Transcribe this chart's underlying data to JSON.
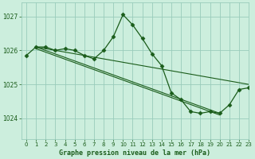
{
  "title": "Graphe pression niveau de la mer (hPa)",
  "background_color": "#cceedd",
  "grid_color": "#99ccbb",
  "line_color": "#1a5c1a",
  "xlim": [
    -0.5,
    23
  ],
  "ylim": [
    1023.4,
    1027.4
  ],
  "yticks": [
    1024,
    1025,
    1026,
    1027
  ],
  "xticks": [
    0,
    1,
    2,
    3,
    4,
    5,
    6,
    7,
    8,
    9,
    10,
    11,
    12,
    13,
    14,
    15,
    16,
    17,
    18,
    19,
    20,
    21,
    22,
    23
  ],
  "series_main": {
    "x": [
      0,
      1,
      2,
      3,
      4,
      5,
      6,
      7,
      8,
      9,
      10,
      11,
      12,
      13,
      14,
      15,
      16,
      17,
      18,
      19,
      20,
      21,
      22,
      23
    ],
    "y": [
      1025.85,
      1026.1,
      1026.1,
      1026.0,
      1026.05,
      1026.0,
      1025.85,
      1025.75,
      1026.0,
      1026.4,
      1027.05,
      1026.75,
      1026.35,
      1025.9,
      1025.55,
      1024.75,
      1024.55,
      1024.2,
      1024.15,
      1024.2,
      1024.15,
      1024.4,
      1024.85,
      1024.9
    ]
  },
  "series_diag1": {
    "x": [
      1,
      23
    ],
    "y": [
      1026.1,
      1025.0
    ]
  },
  "series_diag2": {
    "x": [
      1,
      20
    ],
    "y": [
      1026.1,
      1024.15
    ]
  },
  "series_diag3": {
    "x": [
      1,
      20
    ],
    "y": [
      1026.05,
      1024.1
    ]
  }
}
